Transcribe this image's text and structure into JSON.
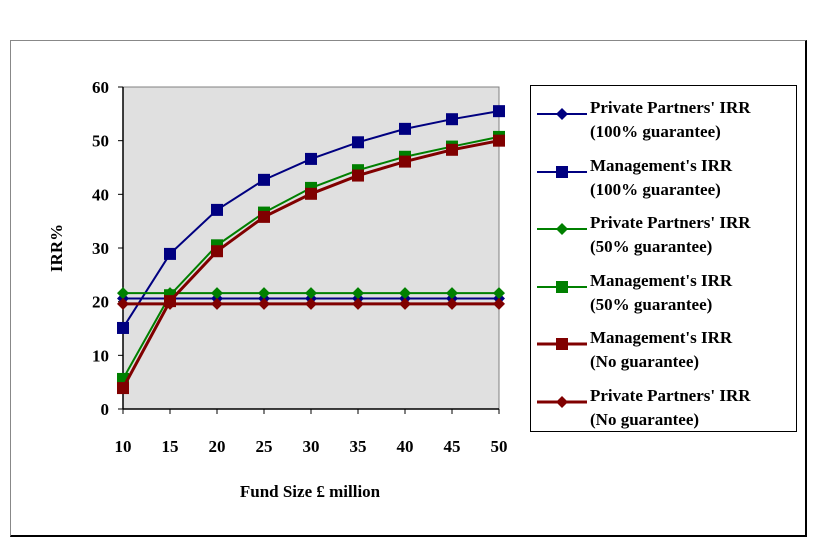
{
  "chart_data": {
    "type": "line",
    "xlabel": "Fund Size £ million",
    "ylabel": "IRR%",
    "x": [
      10,
      15,
      20,
      25,
      30,
      35,
      40,
      45,
      50
    ],
    "xticks": [
      "10",
      "15",
      "20",
      "25",
      "30",
      "35",
      "40",
      "45",
      "50"
    ],
    "yticks": [
      "0",
      "10",
      "20",
      "30",
      "40",
      "50",
      "60"
    ],
    "ylim": [
      0,
      60
    ],
    "grid": false,
    "legend_position": "right",
    "plot_background": "#e0e0e0",
    "series": [
      {
        "name_line1": "Private Partners' IRR",
        "name_line2": "(100% guarantee)",
        "color": "#000080",
        "marker": "diamond",
        "width": 2,
        "values": [
          20.6,
          20.6,
          20.6,
          20.6,
          20.6,
          20.6,
          20.6,
          20.6,
          20.6
        ]
      },
      {
        "name_line1": "Management's IRR",
        "name_line2": "(100% guarantee)",
        "color": "#000080",
        "marker": "square",
        "width": 2,
        "values": [
          15.1,
          28.9,
          37.1,
          42.7,
          46.6,
          49.7,
          52.2,
          54.0,
          55.5
        ]
      },
      {
        "name_line1": "Private Partners' IRR",
        "name_line2": "(50% guarantee)",
        "color": "#008000",
        "marker": "diamond",
        "width": 2,
        "values": [
          21.6,
          21.6,
          21.6,
          21.6,
          21.6,
          21.6,
          21.6,
          21.6,
          21.6
        ]
      },
      {
        "name_line1": "Management's IRR",
        "name_line2": "(50% guarantee)",
        "color": "#008000",
        "marker": "square",
        "width": 2,
        "values": [
          5.6,
          21.2,
          30.5,
          36.6,
          41.2,
          44.5,
          47.0,
          48.9,
          50.7
        ]
      },
      {
        "name_line1": "Management's IRR",
        "name_line2": "(No guarantee)",
        "color": "#800000",
        "marker": "square",
        "width": 3,
        "values": [
          3.9,
          20.1,
          29.4,
          35.8,
          40.1,
          43.5,
          46.1,
          48.3,
          50.0
        ]
      },
      {
        "name_line1": "Private Partners' IRR",
        "name_line2": "(No guarantee)",
        "color": "#800000",
        "marker": "diamond",
        "width": 3,
        "values": [
          19.6,
          19.6,
          19.6,
          19.6,
          19.6,
          19.6,
          19.6,
          19.6,
          19.6
        ]
      }
    ]
  }
}
